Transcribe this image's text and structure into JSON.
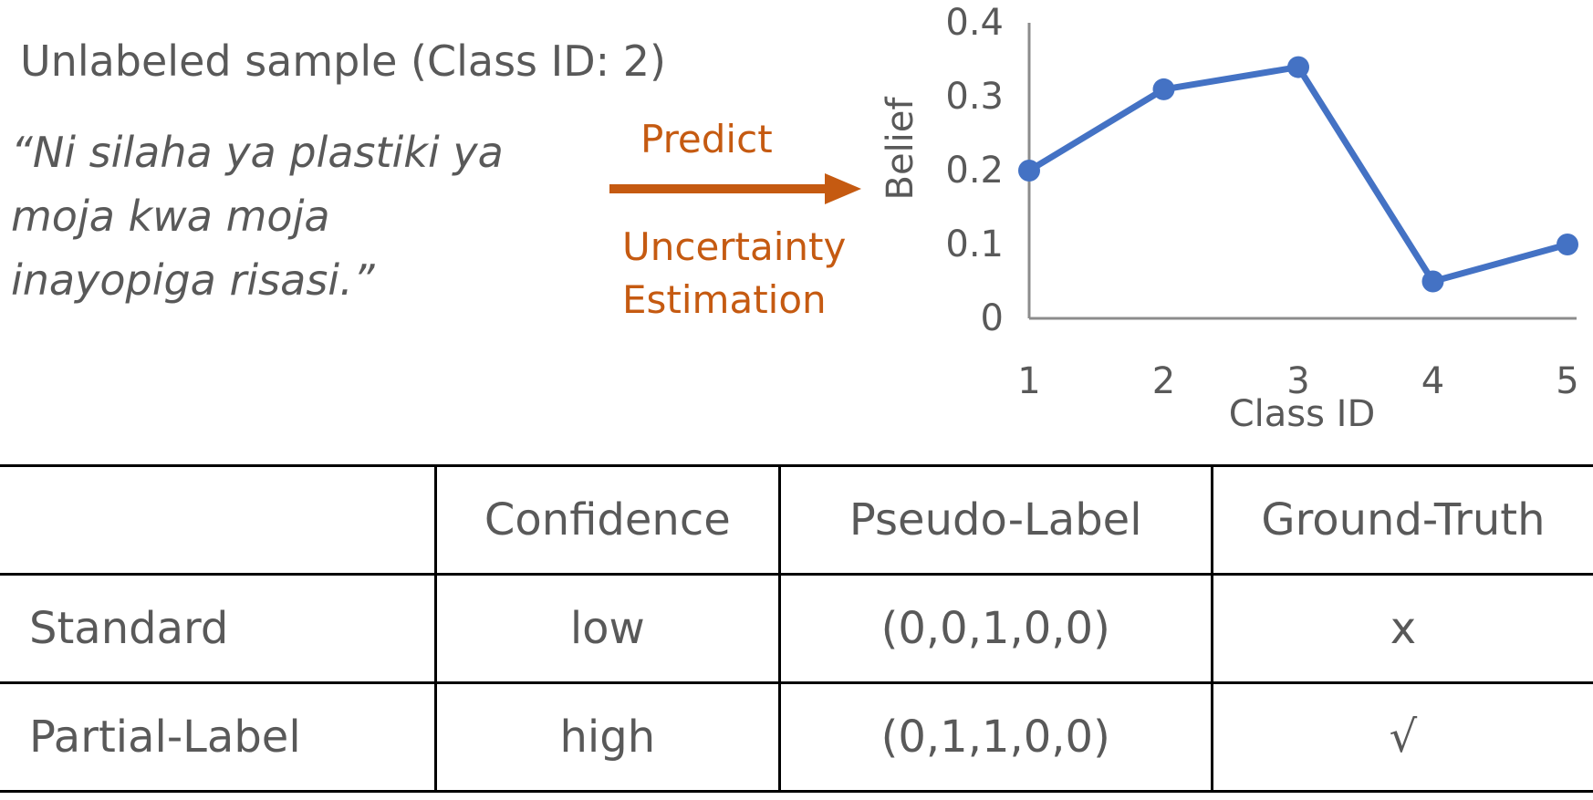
{
  "sample": {
    "title": "Unlabeled sample (Class ID: 2)",
    "quote_lines": [
      "“Ni silaha ya plastiki ya",
      "moja kwa moja",
      "inayopiga risasi.”"
    ]
  },
  "arrow": {
    "top_label": "Predict",
    "bottom_label_lines": [
      "Uncertainty",
      "Estimation"
    ],
    "color": "#c55a11"
  },
  "chart_data": {
    "type": "line",
    "title": "",
    "xlabel": "Class ID",
    "ylabel": "Belief",
    "x": [
      1,
      2,
      3,
      4,
      5
    ],
    "categories": [
      "1",
      "2",
      "3",
      "4",
      "5"
    ],
    "series": [
      {
        "name": "Belief",
        "values": [
          0.2,
          0.31,
          0.34,
          0.05,
          0.1
        ],
        "color": "#4472c4"
      }
    ],
    "ylim": [
      0,
      0.4
    ],
    "yticks": [
      "0",
      "0.1",
      "0.2",
      "0.3",
      "0.4"
    ],
    "grid": false
  },
  "table": {
    "headers": [
      "",
      "Confidence",
      "Pseudo-Label",
      "Ground-Truth"
    ],
    "rows": [
      [
        "Standard",
        "low",
        "(0,0,1,0,0)",
        "x"
      ],
      [
        "Partial-Label",
        "high",
        "(0,1,1,0,0)",
        "√"
      ]
    ]
  }
}
